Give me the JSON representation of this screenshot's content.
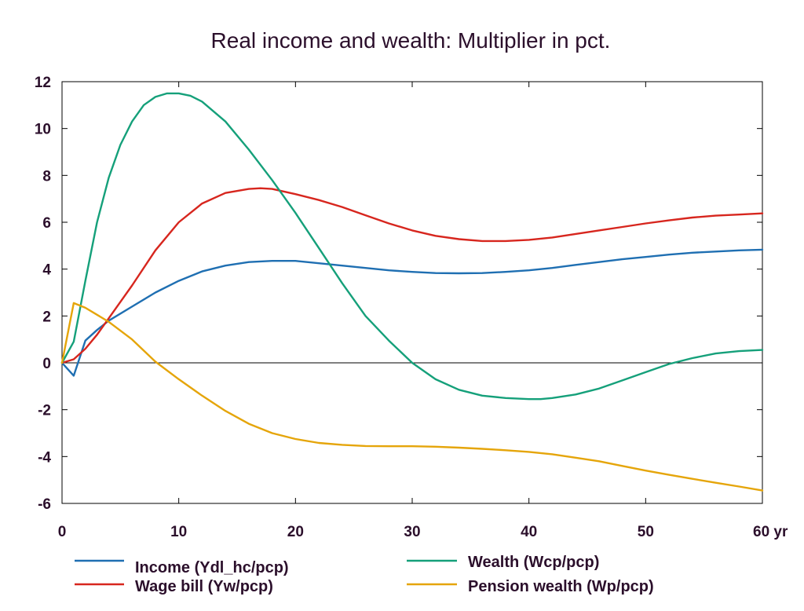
{
  "chart_data": {
    "type": "line",
    "title": "Real income and wealth: Multiplier in pct.",
    "xlabel": "",
    "ylabel": "",
    "xlim": [
      0,
      60
    ],
    "ylim": [
      -6,
      12
    ],
    "x_ticks": [
      0,
      10,
      20,
      30,
      40,
      50,
      60
    ],
    "x_tick_labels": [
      "0",
      "10",
      "20",
      "30",
      "40",
      "50",
      "60 yr"
    ],
    "y_ticks": [
      -6,
      -4,
      -2,
      0,
      2,
      4,
      6,
      8,
      10,
      12
    ],
    "y_tick_labels": [
      "-6",
      "-4",
      "-2",
      "0",
      "2",
      "4",
      "6",
      "8",
      "10",
      "12"
    ],
    "grid": false,
    "zero_line": true,
    "legend_position": "bottom",
    "series": [
      {
        "name": "Income (Ydl_hc/pcp)",
        "color": "#1f6fb2",
        "x": [
          0,
          1,
          2,
          3,
          4,
          6,
          8,
          10,
          12,
          14,
          16,
          18,
          20,
          22,
          24,
          26,
          28,
          30,
          32,
          34,
          36,
          38,
          40,
          42,
          44,
          46,
          48,
          50,
          52,
          54,
          56,
          58,
          60
        ],
        "y": [
          0,
          -0.55,
          0.95,
          1.4,
          1.8,
          2.4,
          3.0,
          3.5,
          3.9,
          4.15,
          4.3,
          4.35,
          4.35,
          4.25,
          4.15,
          4.05,
          3.95,
          3.88,
          3.83,
          3.82,
          3.83,
          3.88,
          3.95,
          4.05,
          4.18,
          4.3,
          4.42,
          4.52,
          4.62,
          4.7,
          4.75,
          4.8,
          4.83
        ]
      },
      {
        "name": "Wage bill (Yw/pcp)",
        "color": "#d7261e",
        "x": [
          0,
          1,
          2,
          3,
          4,
          6,
          8,
          10,
          12,
          14,
          16,
          17,
          18,
          20,
          22,
          24,
          26,
          28,
          30,
          32,
          34,
          36,
          38,
          40,
          42,
          44,
          46,
          48,
          50,
          52,
          54,
          56,
          58,
          60
        ],
        "y": [
          0,
          0.15,
          0.6,
          1.2,
          1.9,
          3.3,
          4.8,
          6.0,
          6.8,
          7.25,
          7.42,
          7.45,
          7.42,
          7.2,
          6.95,
          6.65,
          6.3,
          5.95,
          5.65,
          5.42,
          5.28,
          5.2,
          5.2,
          5.25,
          5.35,
          5.5,
          5.65,
          5.8,
          5.95,
          6.08,
          6.2,
          6.28,
          6.33,
          6.38
        ]
      },
      {
        "name": "Wealth (Wcp/pcp)",
        "color": "#15a07a",
        "x": [
          0,
          1,
          2,
          3,
          4,
          5,
          6,
          7,
          8,
          9,
          10,
          11,
          12,
          14,
          16,
          18,
          20,
          22,
          24,
          26,
          28,
          30,
          32,
          34,
          36,
          38,
          40,
          41,
          42,
          44,
          46,
          48,
          50,
          52,
          54,
          56,
          58,
          60
        ],
        "y": [
          0,
          0.9,
          3.5,
          6.0,
          7.9,
          9.3,
          10.3,
          11.0,
          11.35,
          11.5,
          11.5,
          11.4,
          11.15,
          10.3,
          9.1,
          7.8,
          6.4,
          4.9,
          3.4,
          2.0,
          0.95,
          0.0,
          -0.7,
          -1.15,
          -1.4,
          -1.5,
          -1.55,
          -1.55,
          -1.5,
          -1.35,
          -1.1,
          -0.75,
          -0.4,
          -0.05,
          0.2,
          0.4,
          0.5,
          0.55
        ]
      },
      {
        "name": "Pension wealth (Wp/pcp)",
        "color": "#e5a50a",
        "x": [
          0,
          1,
          2,
          3,
          4,
          6,
          8,
          10,
          12,
          14,
          16,
          18,
          20,
          22,
          24,
          26,
          28,
          30,
          32,
          34,
          36,
          38,
          40,
          42,
          44,
          46,
          48,
          50,
          52,
          54,
          56,
          58,
          60
        ],
        "y": [
          0,
          2.55,
          2.35,
          2.05,
          1.75,
          1.0,
          0.05,
          -0.7,
          -1.4,
          -2.05,
          -2.6,
          -3.0,
          -3.25,
          -3.42,
          -3.5,
          -3.55,
          -3.56,
          -3.56,
          -3.58,
          -3.62,
          -3.67,
          -3.73,
          -3.8,
          -3.9,
          -4.05,
          -4.2,
          -4.4,
          -4.6,
          -4.78,
          -4.95,
          -5.12,
          -5.28,
          -5.45
        ]
      }
    ]
  }
}
